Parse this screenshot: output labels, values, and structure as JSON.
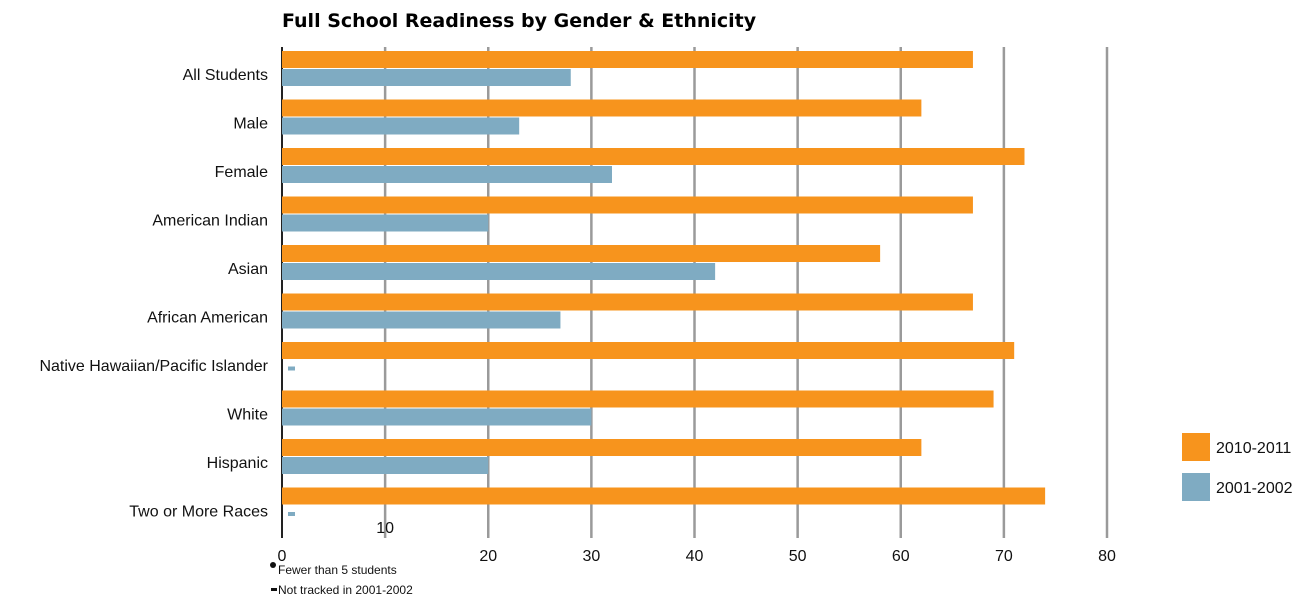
{
  "chart_data": {
    "type": "bar",
    "orientation": "horizontal",
    "title": "Full School Readiness by Gender & Ethnicity",
    "xlabel": "",
    "ylabel": "",
    "xlim": [
      0,
      80
    ],
    "x_ticks": [
      "0",
      "10",
      "20",
      "30",
      "40",
      "50",
      "60",
      "70",
      "80"
    ],
    "grid": true,
    "legend_position": "right",
    "categories": [
      "All Students",
      "Male",
      "Female",
      "American Indian",
      "Asian",
      "African American",
      "Native Hawaiian/Pacific Islander",
      "White",
      "Hispanic",
      "Two or More Races"
    ],
    "series": [
      {
        "name": "2010-2011",
        "color": "#f7941d",
        "values": [
          67,
          62,
          72,
          67,
          58,
          67,
          71,
          69,
          62,
          74
        ]
      },
      {
        "name": "2001-2002",
        "color": "#7fabc2",
        "values": [
          28,
          23,
          32,
          20,
          42,
          27,
          null,
          30,
          20,
          null
        ],
        "markers": [
          null,
          null,
          null,
          null,
          null,
          null,
          "-",
          null,
          null,
          "-"
        ]
      }
    ],
    "notes": [
      {
        "symbol": "•",
        "text": "Fewer than 5 students"
      },
      {
        "symbol": "-",
        "text": "Not tracked in 2001-2002"
      }
    ]
  }
}
